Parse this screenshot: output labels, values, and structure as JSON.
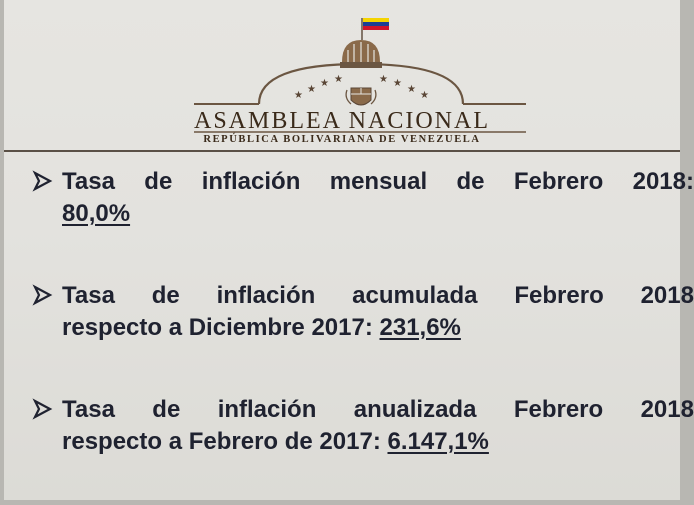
{
  "header": {
    "institution": "ASAMBLEA NACIONAL",
    "subtitle": "REPÚBLICA BOLIVARIANA DE VENEZUELA",
    "logo_icon": "national-assembly-emblem-icon",
    "flag_colors": [
      "#f5d400",
      "#1c3f94",
      "#cf142b"
    ],
    "accent_color": "#6b5642"
  },
  "bullets": [
    {
      "words": [
        "Tasa",
        "de",
        "inflación",
        "mensual",
        "de",
        "Febrero",
        "2018:"
      ],
      "line2_prefix": "",
      "value": "80,0%"
    },
    {
      "words": [
        "Tasa",
        "de",
        "inflación",
        "acumulada",
        "Febrero",
        "2018"
      ],
      "line2_prefix": "respecto a Diciembre 2017: ",
      "value": "231,6%"
    },
    {
      "words": [
        "Tasa",
        "de",
        "inflación",
        "anualizada",
        "Febrero",
        "2018"
      ],
      "line2_prefix": "respecto a Febrero de 2017: ",
      "value": "6.147,1%"
    }
  ]
}
